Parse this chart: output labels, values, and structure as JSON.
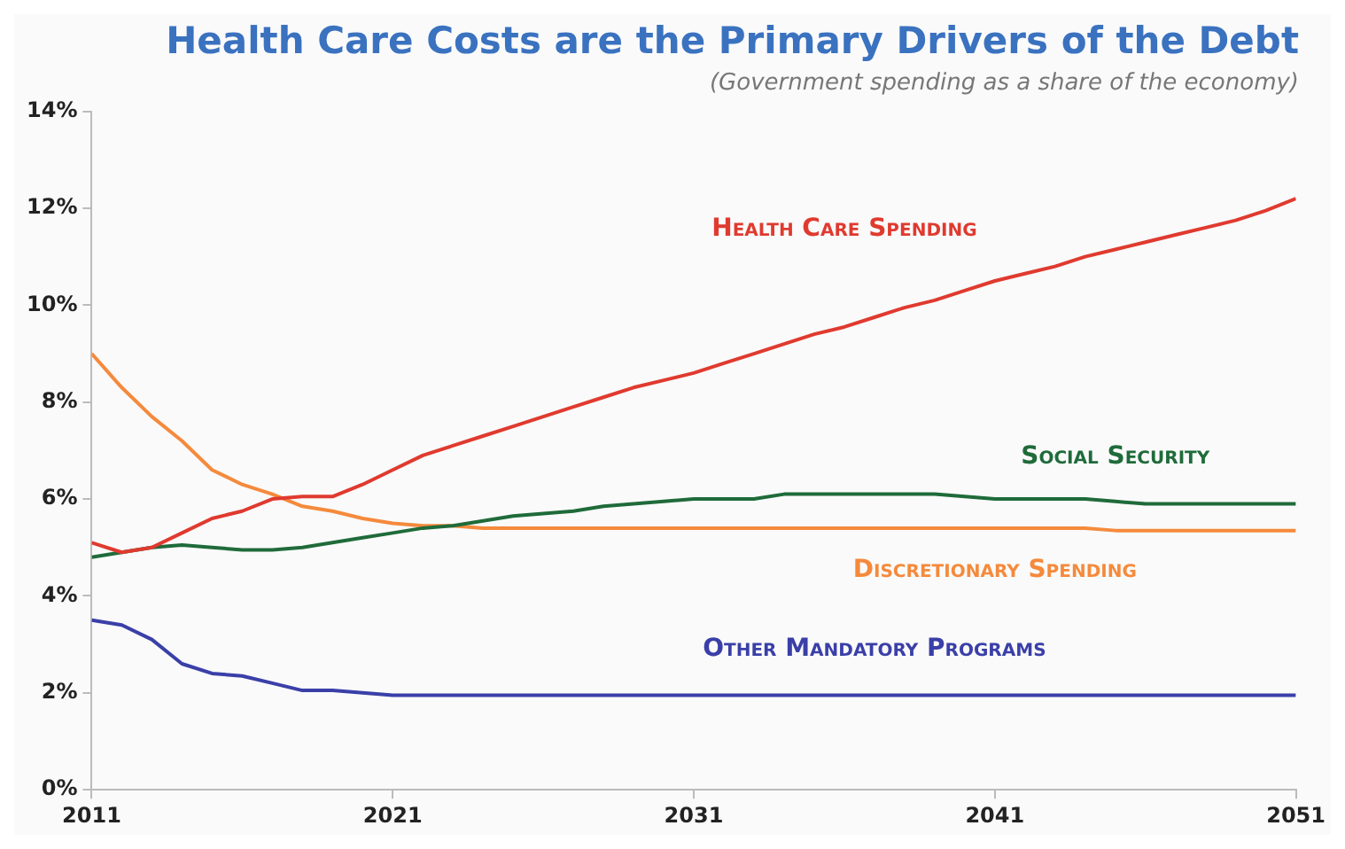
{
  "chart_data": {
    "type": "line",
    "title": "Health Care Costs are the Primary Drivers of the Debt",
    "subtitle": "(Government spending as a share of the economy)",
    "x": [
      2011,
      2012,
      2013,
      2014,
      2015,
      2016,
      2017,
      2018,
      2019,
      2020,
      2021,
      2022,
      2023,
      2024,
      2025,
      2026,
      2027,
      2028,
      2029,
      2030,
      2031,
      2032,
      2033,
      2034,
      2035,
      2036,
      2037,
      2038,
      2039,
      2040,
      2041,
      2042,
      2043,
      2044,
      2045,
      2046,
      2047,
      2048,
      2049,
      2050,
      2051
    ],
    "series": [
      {
        "name": "Health Care Spending",
        "color": "#e03a2f",
        "values": [
          5.1,
          4.9,
          5.0,
          5.3,
          5.6,
          5.75,
          6.0,
          6.05,
          6.05,
          6.3,
          6.6,
          6.9,
          7.1,
          7.3,
          7.5,
          7.7,
          7.9,
          8.1,
          8.3,
          8.45,
          8.6,
          8.8,
          9.0,
          9.2,
          9.4,
          9.55,
          9.75,
          9.95,
          10.1,
          10.3,
          10.5,
          10.65,
          10.8,
          11.0,
          11.15,
          11.3,
          11.45,
          11.6,
          11.75,
          11.95,
          12.2
        ]
      },
      {
        "name": "Social Security",
        "color": "#1f6b3a",
        "values": [
          4.8,
          4.9,
          5.0,
          5.05,
          5.0,
          4.95,
          4.95,
          5.0,
          5.1,
          5.2,
          5.3,
          5.4,
          5.45,
          5.55,
          5.65,
          5.7,
          5.75,
          5.85,
          5.9,
          5.95,
          6.0,
          6.0,
          6.0,
          6.1,
          6.1,
          6.1,
          6.1,
          6.1,
          6.1,
          6.05,
          6.0,
          6.0,
          6.0,
          6.0,
          5.95,
          5.9,
          5.9,
          5.9,
          5.9,
          5.9,
          5.9
        ]
      },
      {
        "name": "Discretionary Spending",
        "color": "#f58a3c",
        "values": [
          9.0,
          8.3,
          7.7,
          7.2,
          6.6,
          6.3,
          6.1,
          5.85,
          5.75,
          5.6,
          5.5,
          5.45,
          5.45,
          5.4,
          5.4,
          5.4,
          5.4,
          5.4,
          5.4,
          5.4,
          5.4,
          5.4,
          5.4,
          5.4,
          5.4,
          5.4,
          5.4,
          5.4,
          5.4,
          5.4,
          5.4,
          5.4,
          5.4,
          5.4,
          5.35,
          5.35,
          5.35,
          5.35,
          5.35,
          5.35,
          5.35
        ]
      },
      {
        "name": "Other Mandatory Programs",
        "color": "#3a3fa8",
        "values": [
          3.5,
          3.4,
          3.1,
          2.6,
          2.4,
          2.35,
          2.2,
          2.05,
          2.05,
          2.0,
          1.95,
          1.95,
          1.95,
          1.95,
          1.95,
          1.95,
          1.95,
          1.95,
          1.95,
          1.95,
          1.95,
          1.95,
          1.95,
          1.95,
          1.95,
          1.95,
          1.95,
          1.95,
          1.95,
          1.95,
          1.95,
          1.95,
          1.95,
          1.95,
          1.95,
          1.95,
          1.95,
          1.95,
          1.95,
          1.95,
          1.95
        ]
      }
    ],
    "xlim": [
      2011,
      2051
    ],
    "xticks": [
      2011,
      2021,
      2031,
      2041,
      2051
    ],
    "ylim": [
      0,
      14
    ],
    "yticks": [
      {
        "value": 0,
        "label": "0%"
      },
      {
        "value": 2,
        "label": "2%"
      },
      {
        "value": 4,
        "label": "4%"
      },
      {
        "value": 6,
        "label": "6%"
      },
      {
        "value": 8,
        "label": "8%"
      },
      {
        "value": 10,
        "label": "10%"
      },
      {
        "value": 12,
        "label": "12%"
      },
      {
        "value": 14,
        "label": "14%"
      }
    ],
    "grid": false,
    "marker": "none",
    "line_style": "solid"
  }
}
